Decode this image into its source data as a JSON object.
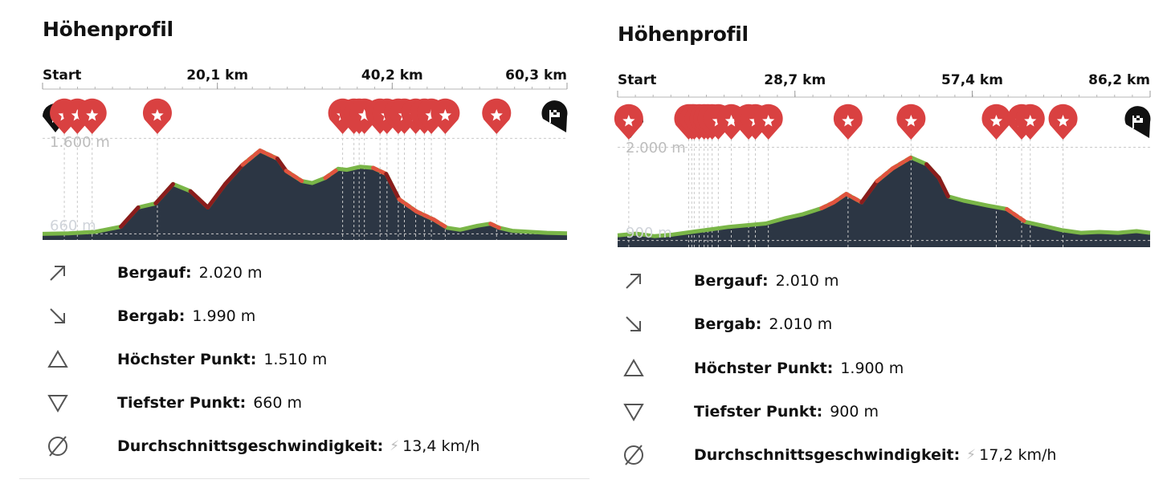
{
  "profiles": [
    {
      "title": "Höhenprofil",
      "axis_labels": [
        "Start",
        "20,1 km",
        "40,2 km",
        "60,3 km"
      ],
      "elevation_labels": [
        "1.600 m",
        "660 m"
      ],
      "stats": {
        "uphill": {
          "label": "Bergauf:",
          "value": "2.020 m"
        },
        "downhill": {
          "label": "Bergab:",
          "value": "1.990 m"
        },
        "highest": {
          "label": "Höchster Punkt:",
          "value": "1.510 m"
        },
        "lowest": {
          "label": "Tiefster Punkt:",
          "value": "660 m"
        },
        "speed": {
          "label": "Durchschnittsgeschwindigkeit:",
          "value": "13,4 km/h"
        }
      },
      "chart_data": {
        "type": "area",
        "xlabel": "",
        "ylabel": "",
        "xlim_km": [
          0,
          60.3
        ],
        "ylim_m": [
          600,
          1650
        ],
        "x_ticks_km": [
          0,
          20.1,
          40.2,
          60.3
        ],
        "y_ticks_m": [
          660,
          1600
        ],
        "highlight_markers_km": [
          2.5,
          4.0,
          5.7,
          13.2,
          34.5,
          35.8,
          36.4,
          37.0,
          38.8,
          39.6,
          40.9,
          41.6,
          42.9,
          43.9,
          44.7,
          46.3,
          52.2
        ],
        "x_km": [
          0,
          3,
          6,
          9,
          11,
          13,
          15,
          17,
          19,
          21,
          23,
          25,
          27,
          28,
          29.8,
          31,
          32.5,
          34,
          35,
          36.5,
          38,
          39.5,
          41,
          43,
          45,
          46.5,
          48,
          50,
          51.5,
          52.5,
          54,
          56,
          58,
          60.3
        ],
        "y_m": [
          660,
          665,
          680,
          730,
          920,
          960,
          1150,
          1080,
          920,
          1150,
          1340,
          1480,
          1400,
          1280,
          1180,
          1160,
          1210,
          1300,
          1290,
          1320,
          1310,
          1250,
          1000,
          880,
          800,
          720,
          700,
          740,
          760,
          720,
          690,
          680,
          670,
          665
        ]
      }
    },
    {
      "title": "Höhenprofil",
      "axis_labels": [
        "Start",
        "28,7 km",
        "57,4 km",
        "86,2 km"
      ],
      "elevation_labels": [
        "2.000 m",
        "900 m"
      ],
      "stats": {
        "uphill": {
          "label": "Bergauf:",
          "value": "2.010 m"
        },
        "downhill": {
          "label": "Bergab:",
          "value": "2.010 m"
        },
        "highest": {
          "label": "Höchster Punkt:",
          "value": "1.900 m"
        },
        "lowest": {
          "label": "Tiefster Punkt:",
          "value": "900 m"
        },
        "speed": {
          "label": "Durchschnittsgeschwindigkeit:",
          "value": "17,2 km/h"
        }
      },
      "chart_data": {
        "type": "area",
        "xlabel": "",
        "ylabel": "",
        "xlim_km": [
          0,
          86.2
        ],
        "ylim_m": [
          820,
          2100
        ],
        "x_ticks_km": [
          0,
          28.7,
          57.4,
          86.2
        ],
        "y_ticks_m": [
          900,
          2000
        ],
        "highlight_markers_km": [
          1.8,
          11.5,
          12.0,
          12.4,
          13.2,
          14.0,
          14.6,
          15.3,
          16.3,
          18.4,
          21.2,
          22.3,
          24.4,
          37.3,
          47.5,
          61.3,
          65.4,
          66.8,
          72.1
        ],
        "x_km": [
          0,
          3,
          6,
          9,
          12,
          15,
          18,
          21,
          24,
          27,
          30,
          33,
          35,
          37,
          39.5,
          42,
          44.5,
          47.5,
          50,
          52,
          53.5,
          56,
          60,
          63,
          66,
          69,
          72,
          75,
          78,
          81,
          84,
          86.2
        ],
        "y_m": [
          960,
          980,
          950,
          970,
          1000,
          1030,
          1060,
          1080,
          1100,
          1160,
          1210,
          1280,
          1350,
          1450,
          1350,
          1600,
          1750,
          1880,
          1800,
          1640,
          1420,
          1370,
          1310,
          1270,
          1120,
          1070,
          1020,
          990,
          1000,
          990,
          1010,
          990
        ]
      }
    }
  ]
}
